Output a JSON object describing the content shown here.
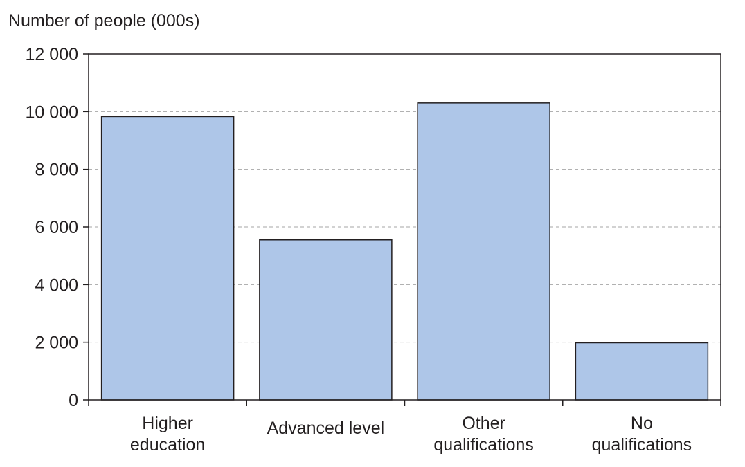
{
  "chart_data": {
    "type": "bar",
    "ylabel": "Number of people (000s)",
    "categories": [
      [
        "Higher",
        "education"
      ],
      [
        "Advanced level"
      ],
      [
        "Other",
        "qualifications"
      ],
      [
        "No",
        "qualifications"
      ]
    ],
    "values": [
      9830,
      5550,
      10300,
      1980
    ],
    "ylim": [
      0,
      12000
    ],
    "yticks": [
      0,
      2000,
      4000,
      6000,
      8000,
      10000,
      12000
    ],
    "ytick_labels": [
      "0",
      "2 000",
      "4 000",
      "6 000",
      "8 000",
      "10 000",
      "12 000"
    ],
    "grid": "horizontal dashed",
    "bar_color": "#aec6e8",
    "bar_edge_color": "#231f20",
    "grid_color": "#a6a6a6"
  }
}
